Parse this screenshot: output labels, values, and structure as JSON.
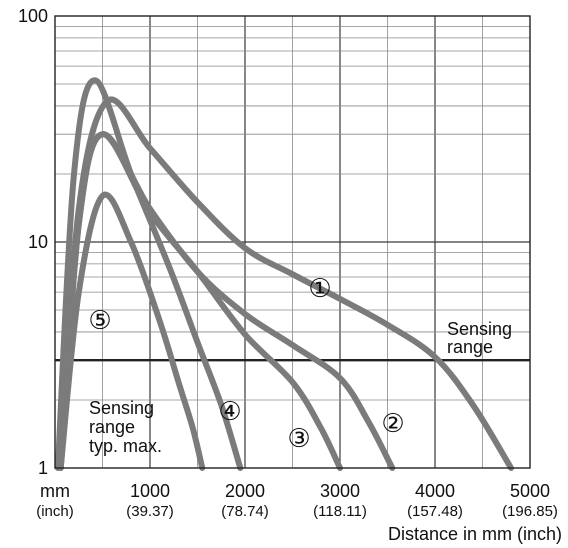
{
  "chart_data": {
    "type": "line",
    "y_scale": "log",
    "ylim": [
      1,
      100
    ],
    "xlim": [
      0,
      5000
    ],
    "grid": true,
    "xlabel": "Distance in mm (inch)",
    "ylabel": "",
    "x_unit_label": "mm",
    "x_unit_sub": "(inch)",
    "x_ticks": [
      {
        "value": 1000,
        "label": "1000",
        "sub": "(39.37)"
      },
      {
        "value": 2000,
        "label": "2000",
        "sub": "(78.74)"
      },
      {
        "value": 3000,
        "label": "3000",
        "sub": "(118.11)"
      },
      {
        "value": 4000,
        "label": "4000",
        "sub": "(157.48)"
      },
      {
        "value": 5000,
        "label": "5000",
        "sub": "(196.85)"
      }
    ],
    "y_ticks": [
      {
        "value": 1,
        "label": "1"
      },
      {
        "value": 10,
        "label": "10"
      },
      {
        "value": 100,
        "label": "100"
      }
    ],
    "threshold": {
      "value": 3,
      "label_line1": "Sensing",
      "label_line2": "range"
    },
    "annotation": {
      "line1": "Sensing",
      "line2": "range",
      "line3": "typ. max."
    },
    "series": [
      {
        "name": "①",
        "x": [
          60,
          250,
          550,
          1000,
          1500,
          2000,
          2500,
          3000,
          3500,
          4000,
          4400,
          4800
        ],
        "y": [
          1,
          14,
          42,
          26,
          15,
          9.4,
          7.2,
          5.6,
          4.3,
          3.1,
          1.9,
          1
        ]
      },
      {
        "name": "②",
        "x": [
          60,
          250,
          500,
          1000,
          1500,
          2000,
          2500,
          3000,
          3300,
          3550
        ],
        "y": [
          1,
          12,
          30,
          14,
          7.4,
          4.8,
          3.5,
          2.5,
          1.6,
          1
        ]
      },
      {
        "name": "③",
        "x": [
          60,
          250,
          500,
          1000,
          1500,
          2000,
          2500,
          2800,
          3000
        ],
        "y": [
          1,
          12,
          30,
          13.5,
          7.4,
          3.9,
          2.4,
          1.5,
          1
        ]
      },
      {
        "name": "④",
        "x": [
          30,
          200,
          420,
          800,
          1200,
          1500,
          1750,
          1950
        ],
        "y": [
          1,
          20,
          52,
          20,
          7.8,
          3.6,
          1.9,
          1
        ]
      },
      {
        "name": "⑤",
        "x": [
          60,
          250,
          500,
          800,
          1100,
          1300,
          1450,
          1550
        ],
        "y": [
          1,
          6,
          16,
          10,
          4.5,
          2.4,
          1.5,
          1
        ]
      }
    ]
  }
}
